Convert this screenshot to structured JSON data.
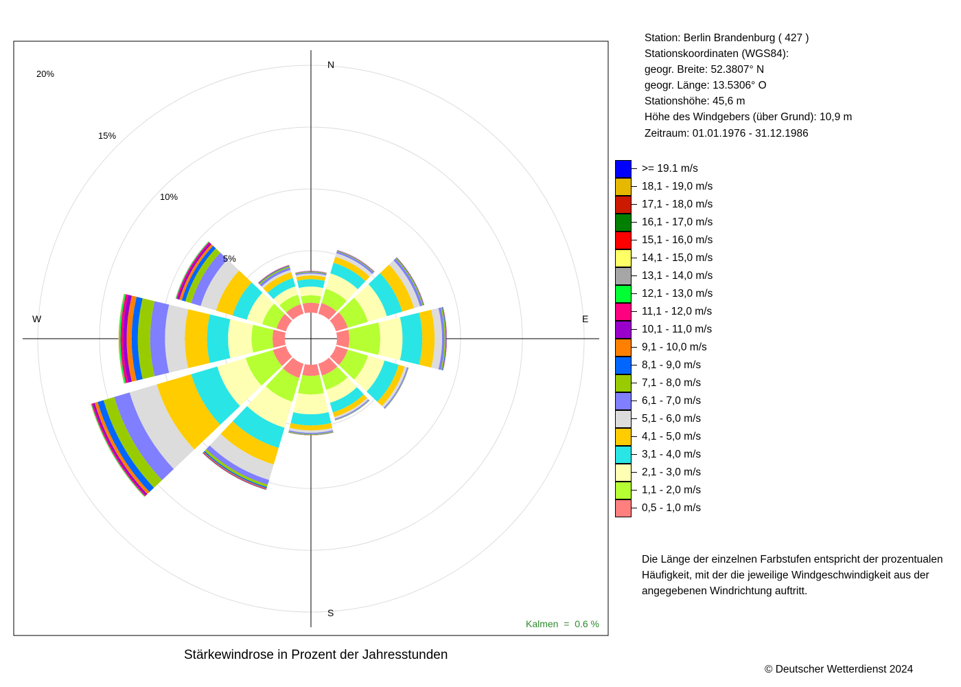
{
  "chart_data": {
    "type": "windrose",
    "title": "Stärkewindrose in Prozent der Jahresstunden",
    "directions": [
      "N",
      "NNE",
      "ENE",
      "E",
      "ESE",
      "SSE",
      "S",
      "SSW",
      "WSW",
      "W",
      "WNW",
      "NNW"
    ],
    "compass_labels": {
      "N": "N",
      "E": "E",
      "S": "S",
      "W": "W"
    },
    "rings": [
      5,
      10,
      15,
      20
    ],
    "ring_labels": [
      "5%",
      "10%",
      "15%",
      "20%"
    ],
    "inner_hole_percent": 1.0,
    "speed_classes": [
      {
        "label": "0,5 - 1,0 m/s",
        "color": "#ff7f7f"
      },
      {
        "label": "1,1 - 2,0 m/s",
        "color": "#b5ff33"
      },
      {
        "label": "2,1 - 3,0 m/s",
        "color": "#ffffb3"
      },
      {
        "label": "3,1 - 4,0 m/s",
        "color": "#29e5e5"
      },
      {
        "label": "4,1 - 5,0 m/s",
        "color": "#ffcc00"
      },
      {
        "label": "5,1 - 6,0 m/s",
        "color": "#dcdcdc"
      },
      {
        "label": "6,1 - 7,0 m/s",
        "color": "#7f7fff"
      },
      {
        "label": "7,1 - 8,0 m/s",
        "color": "#99cc00"
      },
      {
        "label": "8,1 - 9,0 m/s",
        "color": "#0066ff"
      },
      {
        "label": "9,1 - 10,0 m/s",
        "color": "#ff8000"
      },
      {
        "label": "10,1 - 11,0 m/s",
        "color": "#9900cc"
      },
      {
        "label": "11,1 - 12,0 m/s",
        "color": "#ff0080"
      },
      {
        "label": "12,1 - 13,0 m/s",
        "color": "#00ff33"
      },
      {
        "label": "13,1 - 14,0 m/s",
        "color": "#a6a6a6"
      },
      {
        "label": "14,1 - 15,0 m/s",
        "color": "#ffff66"
      },
      {
        "label": "15,1 - 16,0 m/s",
        "color": "#ff0000"
      },
      {
        "label": "16,1 - 17,0 m/s",
        "color": "#007f00"
      },
      {
        "label": "17,1 - 18,0 m/s",
        "color": "#cc1a00"
      },
      {
        "label": "18,1 - 19,0 m/s",
        "color": "#e6b800"
      },
      {
        "label": ">= 19.1 m/s",
        "color": "#0000ff"
      }
    ],
    "series": [
      {
        "direction": "N",
        "values": [
          0.8,
          0.6,
          0.7,
          0.6,
          0.3,
          0.15,
          0.1,
          0.05,
          0.03,
          0.02,
          0.01,
          0.01
        ]
      },
      {
        "direction": "NNE",
        "values": [
          0.9,
          1.2,
          1.3,
          0.9,
          0.5,
          0.3,
          0.15,
          0.05,
          0.03,
          0.02,
          0.01,
          0.01
        ]
      },
      {
        "direction": "ENE",
        "values": [
          1.0,
          1.7,
          1.6,
          1.3,
          1.0,
          0.5,
          0.2,
          0.08,
          0.04,
          0.02,
          0.01,
          0.01
        ]
      },
      {
        "direction": "E",
        "values": [
          1.0,
          2.5,
          1.8,
          1.6,
          1.0,
          0.6,
          0.2,
          0.1,
          0.05,
          0.02,
          0.01,
          0.01
        ]
      },
      {
        "direction": "ESE",
        "values": [
          1.0,
          1.7,
          1.4,
          1.2,
          0.5,
          0.2,
          0.08,
          0.03,
          0.02,
          0.01
        ]
      },
      {
        "direction": "SSE",
        "values": [
          1.0,
          1.2,
          1.1,
          0.8,
          0.4,
          0.15,
          0.08,
          0.03,
          0.02,
          0.01
        ]
      },
      {
        "direction": "S",
        "values": [
          0.9,
          1.5,
          1.6,
          0.9,
          0.4,
          0.2,
          0.1,
          0.05,
          0.03,
          0.02
        ]
      },
      {
        "direction": "SSW",
        "values": [
          1.2,
          2.0,
          2.2,
          1.7,
          1.4,
          1.3,
          0.4,
          0.2,
          0.1,
          0.06,
          0.04,
          0.03,
          0.02
        ]
      },
      {
        "direction": "WSW",
        "values": [
          1.1,
          2.3,
          2.4,
          2.2,
          2.9,
          2.3,
          1.3,
          0.9,
          0.5,
          0.25,
          0.15,
          0.1,
          0.05,
          0.03,
          0.02
        ]
      },
      {
        "direction": "W",
        "values": [
          1.0,
          1.7,
          1.9,
          1.7,
          1.8,
          1.6,
          1.2,
          1.0,
          0.5,
          0.4,
          0.3,
          0.2,
          0.1,
          0.05,
          0.03
        ]
      },
      {
        "direction": "WNW",
        "values": [
          0.8,
          1.2,
          1.3,
          1.2,
          1.4,
          1.3,
          0.8,
          0.5,
          0.3,
          0.2,
          0.15,
          0.1,
          0.05,
          0.03
        ]
      },
      {
        "direction": "NNW",
        "values": [
          0.8,
          0.8,
          0.7,
          0.7,
          0.5,
          0.2,
          0.2,
          0.1,
          0.05,
          0.03,
          0.02,
          0.01
        ]
      }
    ]
  },
  "station": {
    "line1": "Station:  Berlin Brandenburg  ( 427 )",
    "line2": "Stationskoordinaten (WGS84):",
    "line3": "geogr. Breite: 52.3807° N",
    "line4": "geogr. Länge: 13.5306° O",
    "line5": "Stationshöhe: 45,6 m",
    "line6": "Höhe des Windgebers (über Grund): 10,9 m",
    "line7": "Zeitraum: 01.01.1976 - 31.12.1986"
  },
  "calm_text": "Kalmen  =  0.6 %",
  "note": {
    "line1": "Die Länge der einzelnen Farbstufen entspricht der prozentualen",
    "line2": "Häufigkeit, mit der die jeweilige Windgeschwindigkeit aus der",
    "line3": "angegebenen Windrichtung auftritt."
  },
  "copyright": "© Deutscher Wetterdienst  2024"
}
